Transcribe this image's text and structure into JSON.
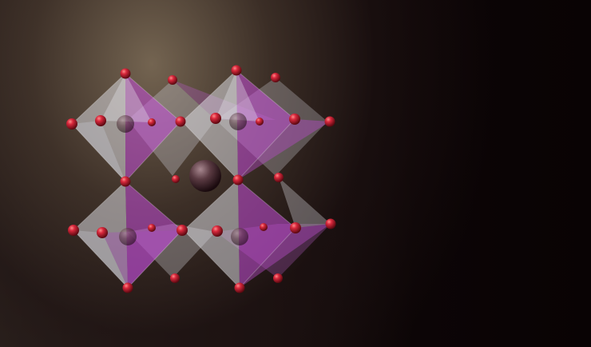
{
  "scene": {
    "subject": "octahedral-crystal-lattice",
    "colors": {
      "background_light": "#786854",
      "background_dark": "#090304",
      "face_gray": "#d8d8de",
      "face_magenta": "#c44fd8",
      "oxygen_atom": "#c8283c",
      "center_atom": "#6a4a50"
    }
  }
}
